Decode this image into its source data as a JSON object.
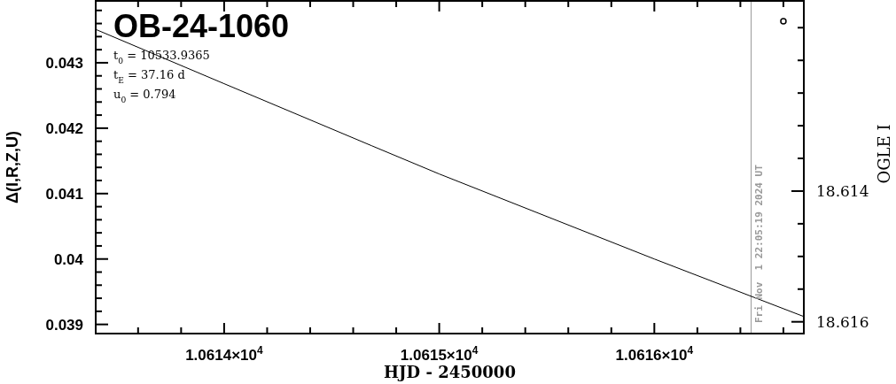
{
  "chart_data": {
    "type": "line",
    "title": "OB-24-1060",
    "xlabel": "HJD - 2450000",
    "ylabel": "Δ(I,R,Z,U)",
    "y2label": "OGLE I",
    "annotations": [
      "t$_{0}$ = 10533.9365",
      "t$_{E}$ = 37.16 d",
      "u$_{0}$ = 0.794",
      {
        "text": "Fri Nov  1 22:05:19 2024 UT",
        "x": 10616.45
      }
    ],
    "series": [
      {
        "color": "#000000",
        "x": [
          10613.403,
          10614.0,
          10614.687,
          10615.0,
          10616.0,
          10616.695
        ],
        "values": [
          0.04351,
          0.04268,
          0.04173,
          0.0413,
          0.04,
          0.03912
        ]
      },
      {
        "type": "scatter",
        "axis": "y2",
        "marker": "circle",
        "color": "#000000",
        "x": [
          10616.6
        ],
        "values": [
          18.6114
        ]
      }
    ],
    "xlim": [
      10613.403,
      10616.695
    ],
    "xticks": [
      {
        "value": 10613.6,
        "label": null
      },
      {
        "value": 10613.8,
        "label": null
      },
      {
        "value": 10614,
        "label": "1.0614×10$^{4}$"
      },
      {
        "value": 10614.2,
        "label": null
      },
      {
        "value": 10614.4,
        "label": null
      },
      {
        "value": 10614.6,
        "label": null
      },
      {
        "value": 10614.8,
        "label": null
      },
      {
        "value": 10615,
        "label": "1.0615×10$^{4}$"
      },
      {
        "value": 10615.2,
        "label": null
      },
      {
        "value": 10615.4,
        "label": null
      },
      {
        "value": 10615.6,
        "label": null
      },
      {
        "value": 10615.8,
        "label": null
      },
      {
        "value": 10616,
        "label": "1.0616×10$^{4}$"
      },
      {
        "value": 10616.2,
        "label": null
      },
      {
        "value": 10616.4,
        "label": null
      },
      {
        "value": 10616.6,
        "label": null
      }
    ],
    "ylim": [
      0.03886,
      0.043946
    ],
    "yticks": [
      0.039,
      {
        "value": 0.0392,
        "label": null
      },
      {
        "value": 0.0394,
        "label": null
      },
      {
        "value": 0.0396,
        "label": null
      },
      {
        "value": 0.0398,
        "label": null
      },
      0.04,
      {
        "value": 0.0402,
        "label": null
      },
      {
        "value": 0.0404,
        "label": null
      },
      {
        "value": 0.0406,
        "label": null
      },
      {
        "value": 0.0408,
        "label": null
      },
      0.041,
      {
        "value": 0.0412,
        "label": null
      },
      {
        "value": 0.0414,
        "label": null
      },
      {
        "value": 0.0416,
        "label": null
      },
      {
        "value": 0.0418,
        "label": null
      },
      0.042,
      {
        "value": 0.0422,
        "label": null
      },
      {
        "value": 0.0424,
        "label": null
      },
      {
        "value": 0.0426,
        "label": null
      },
      {
        "value": 0.0428,
        "label": null
      },
      0.043,
      {
        "value": 0.0432,
        "label": null
      },
      {
        "value": 0.0434,
        "label": null
      },
      {
        "value": 0.0436,
        "label": null
      },
      {
        "value": 0.0438,
        "label": null
      }
    ],
    "y2lim": [
      18.61618,
      18.61109
    ],
    "y2ticks": [
      {
        "value": 18.6115,
        "label": null
      },
      {
        "value": 18.612,
        "label": null
      },
      {
        "value": 18.6125,
        "label": null
      },
      {
        "value": 18.613,
        "label": null
      },
      {
        "value": 18.6135,
        "label": null
      },
      18.614,
      {
        "value": 18.6145,
        "label": null
      },
      {
        "value": 18.615,
        "label": null
      },
      {
        "value": 18.6155,
        "label": null
      },
      18.616
    ],
    "ref_lines": [
      {
        "axis": "x",
        "value": 10616.45,
        "color": "#999999"
      }
    ],
    "grid": false
  }
}
